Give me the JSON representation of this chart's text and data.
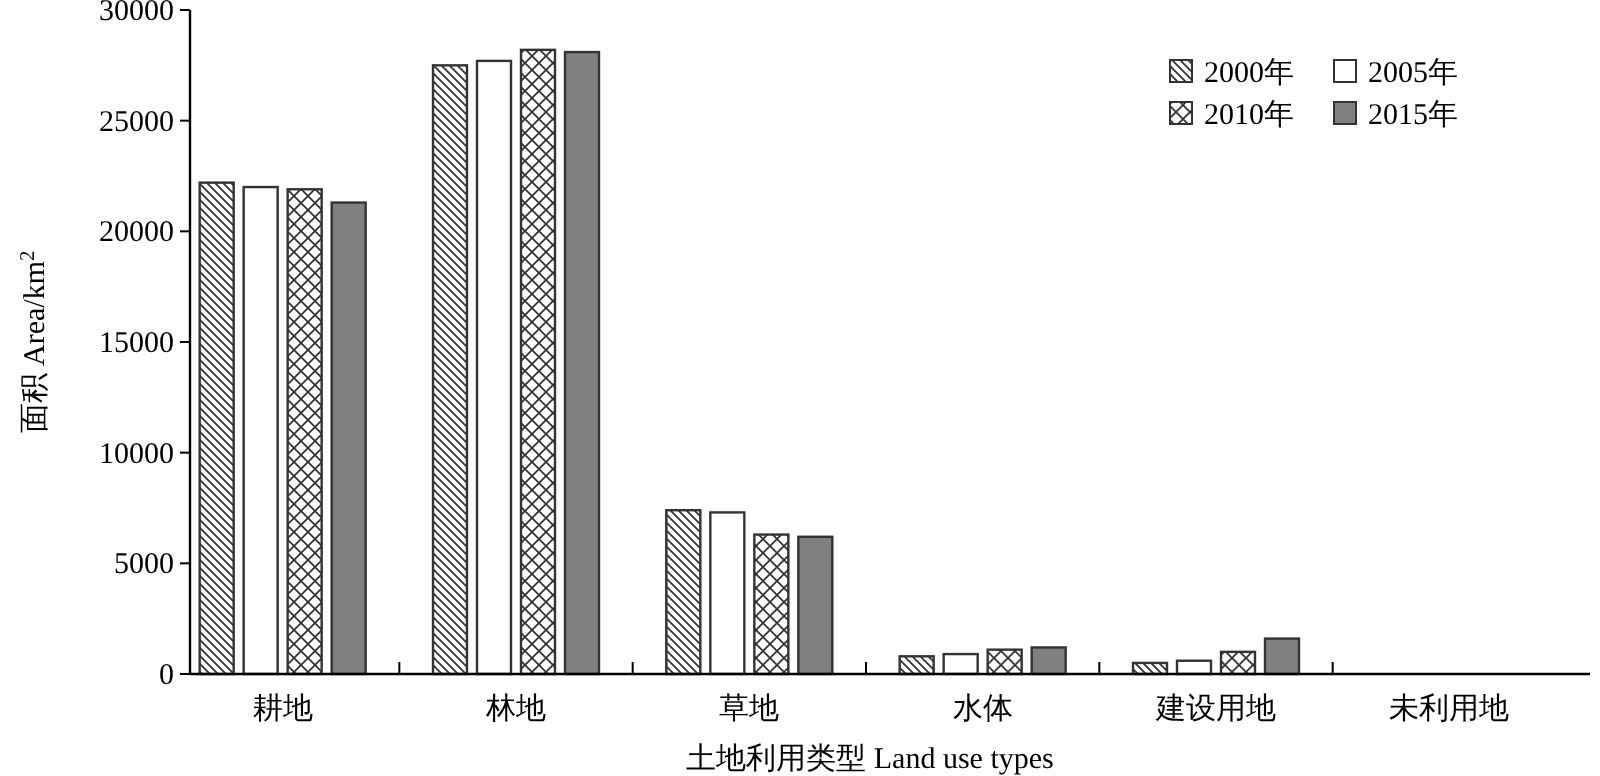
{
  "chart_data": {
    "type": "bar",
    "xlabel": "土地利用类型 Land use types",
    "ylabel": "面积 Area/km$^{2}$",
    "categories": [
      "耕地",
      "林地",
      "草地",
      "水体",
      "建设用地",
      "未利用地"
    ],
    "series": [
      {
        "name": "2000年",
        "color": "#333333",
        "values": [
          22200,
          27500,
          7400,
          800,
          500,
          0
        ]
      },
      {
        "name": "2005年",
        "color": "#ffffff",
        "values": [
          22000,
          27700,
          7300,
          900,
          600,
          0
        ]
      },
      {
        "name": "2010年",
        "color": "#333333",
        "values": [
          21900,
          28200,
          6300,
          1100,
          1000,
          0
        ]
      },
      {
        "name": "2015年",
        "color": "#808080",
        "values": [
          21300,
          28100,
          6200,
          1200,
          1600,
          0
        ]
      }
    ],
    "ylim": [
      0,
      30000
    ],
    "yticks": [
      0,
      5000,
      10000,
      15000,
      20000,
      25000,
      30000
    ],
    "grid": false,
    "legend": "top right"
  }
}
